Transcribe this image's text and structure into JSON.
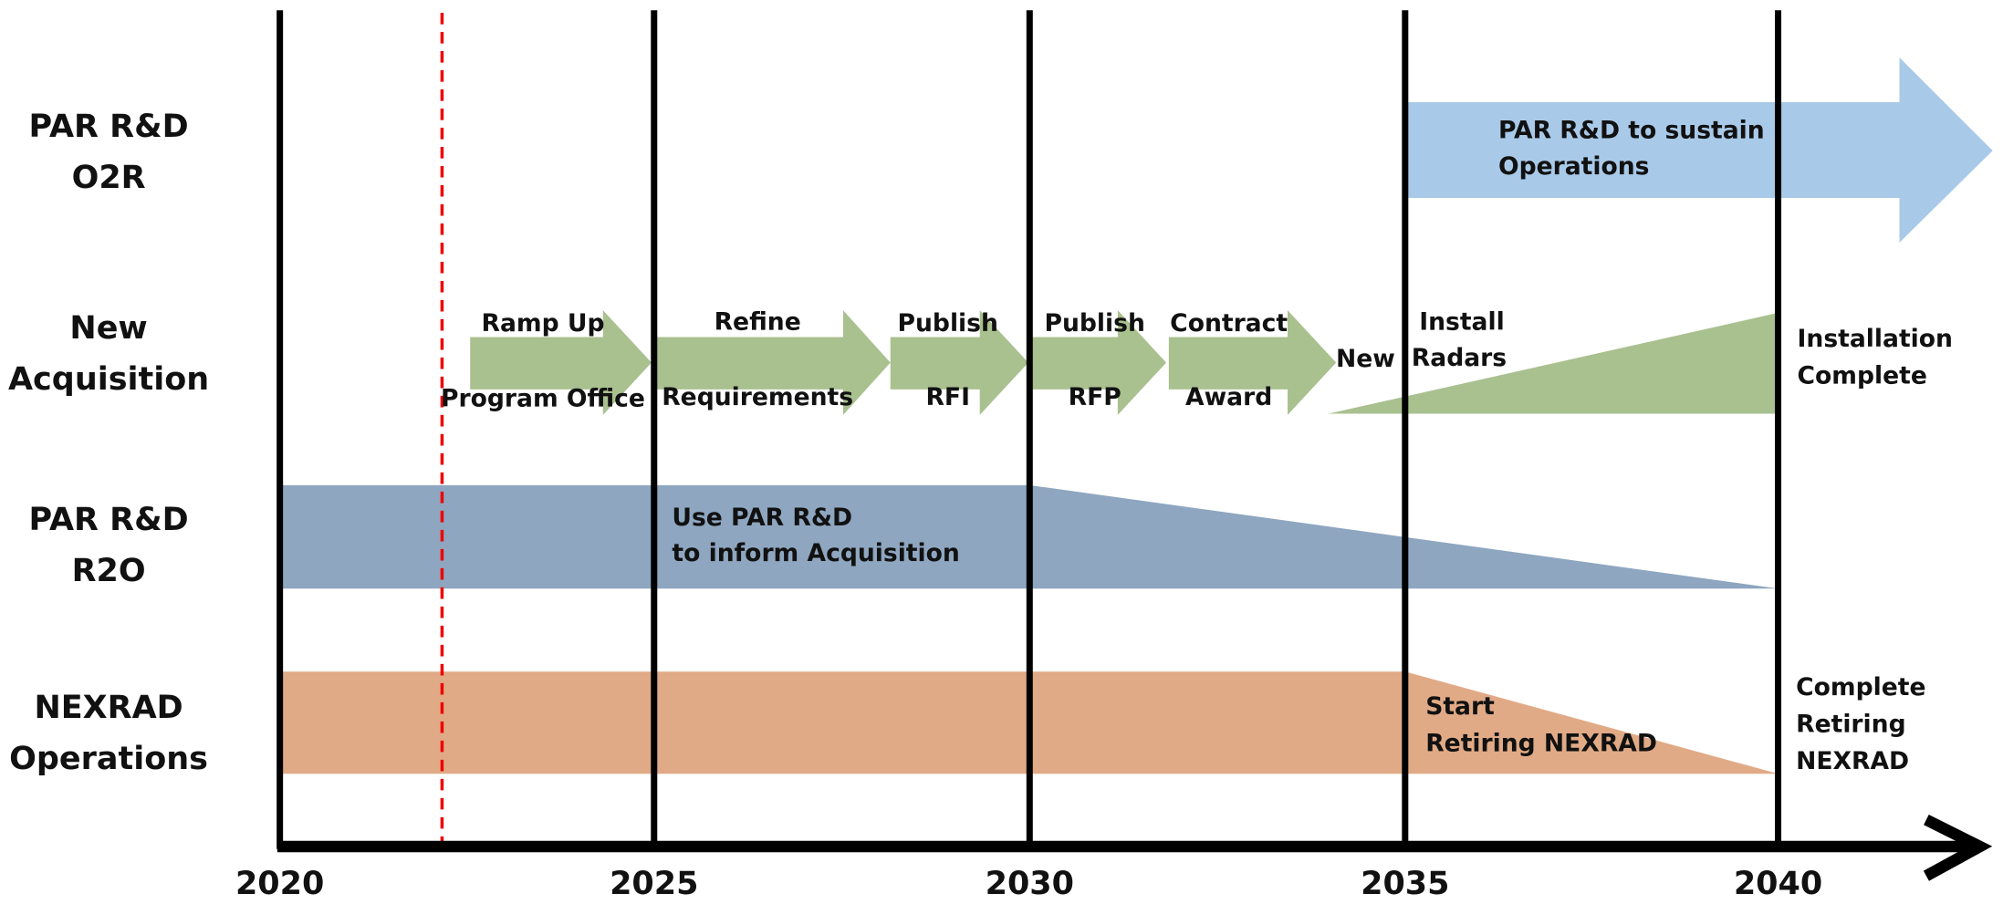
{
  "rows": [
    {
      "label": [
        "PAR R&D",
        "O2R"
      ]
    },
    {
      "label": [
        "New",
        "Acquisition"
      ]
    },
    {
      "label": [
        "PAR R&D",
        "R2O"
      ]
    },
    {
      "label": [
        "NEXRAD",
        "Operations"
      ]
    }
  ],
  "axis": {
    "years": [
      "2020",
      "2025",
      "2030",
      "2035",
      "2040"
    ]
  },
  "o2r": {
    "text": [
      "PAR R&D to sustain",
      "Operations"
    ]
  },
  "acquisition": {
    "steps": [
      {
        "text": [
          "Ramp Up",
          "Program Office"
        ]
      },
      {
        "text": [
          "Refine",
          "Requirements"
        ]
      },
      {
        "text": [
          "Publish",
          "RFI"
        ]
      },
      {
        "text": [
          "Publish",
          "RFP"
        ]
      },
      {
        "text": [
          "Contract",
          "Award"
        ]
      }
    ],
    "new": "New",
    "install": [
      "Install",
      "Radars"
    ],
    "complete": [
      "Installation",
      "Complete"
    ]
  },
  "r2o": {
    "text": [
      "Use PAR R&D",
      "to inform Acquisition"
    ]
  },
  "nexrad": {
    "start": [
      "Start",
      "Retiring NEXRAD"
    ],
    "complete": [
      "Complete",
      "Retiring",
      "NEXRAD"
    ]
  }
}
